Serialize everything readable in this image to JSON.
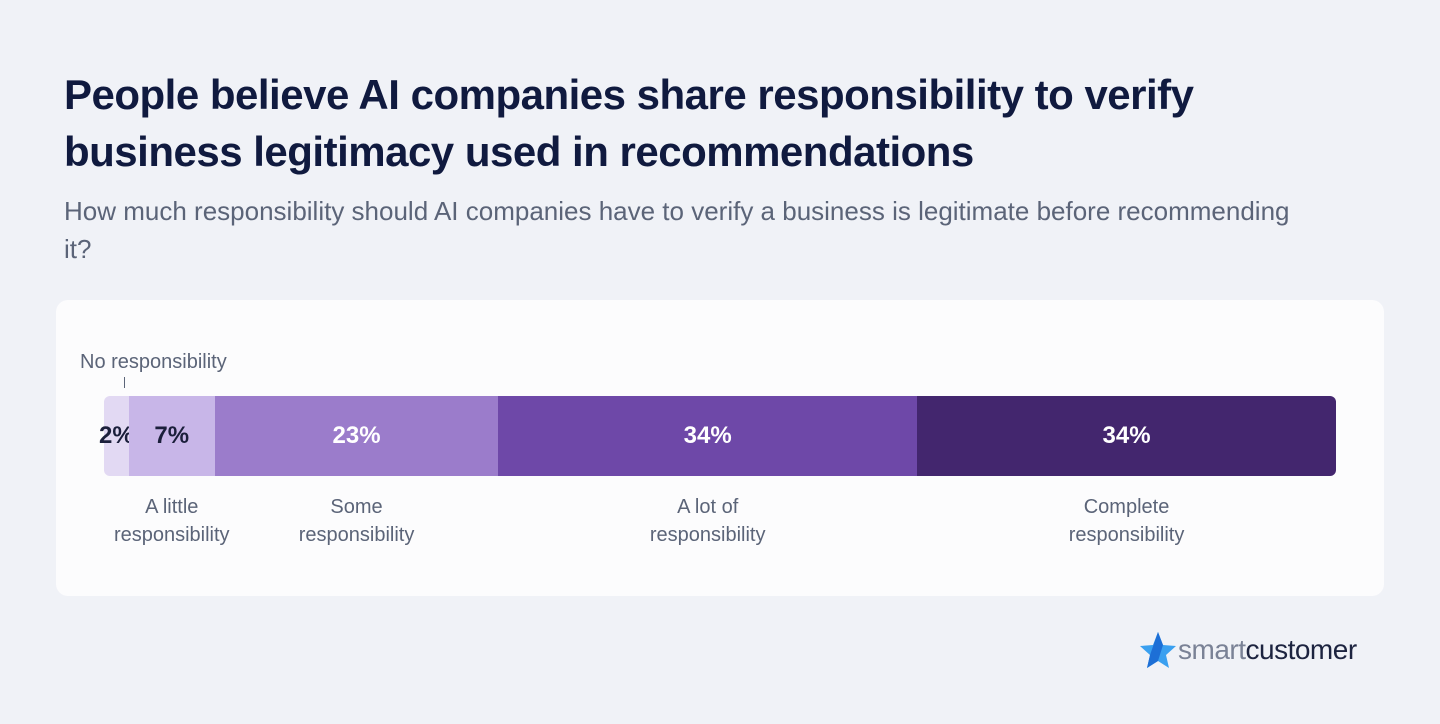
{
  "chart_data": {
    "type": "stacked-bar-100",
    "title": "People believe AI companies share responsibility to verify business legitimacy used in recommendations",
    "subtitle": "How much responsibility should AI companies have to verify a business is legitimate before recommending it?",
    "categories": [
      "No responsibility",
      "A little responsibility",
      "Some responsibility",
      "A lot of responsibility",
      "Complete responsibility"
    ],
    "values": [
      2,
      7,
      23,
      34,
      34
    ],
    "value_labels": [
      "2%",
      "7%",
      "23%",
      "34%",
      "34%"
    ],
    "colors": [
      "#e2d9f3",
      "#c8b6e8",
      "#9b7ccb",
      "#6e48a8",
      "#43266e"
    ],
    "label_colors": [
      "#1b1f3b",
      "#1b1f3b",
      "#ffffff",
      "#ffffff",
      "#ffffff"
    ]
  },
  "logo": {
    "part1": "smart",
    "part2": "customer"
  }
}
